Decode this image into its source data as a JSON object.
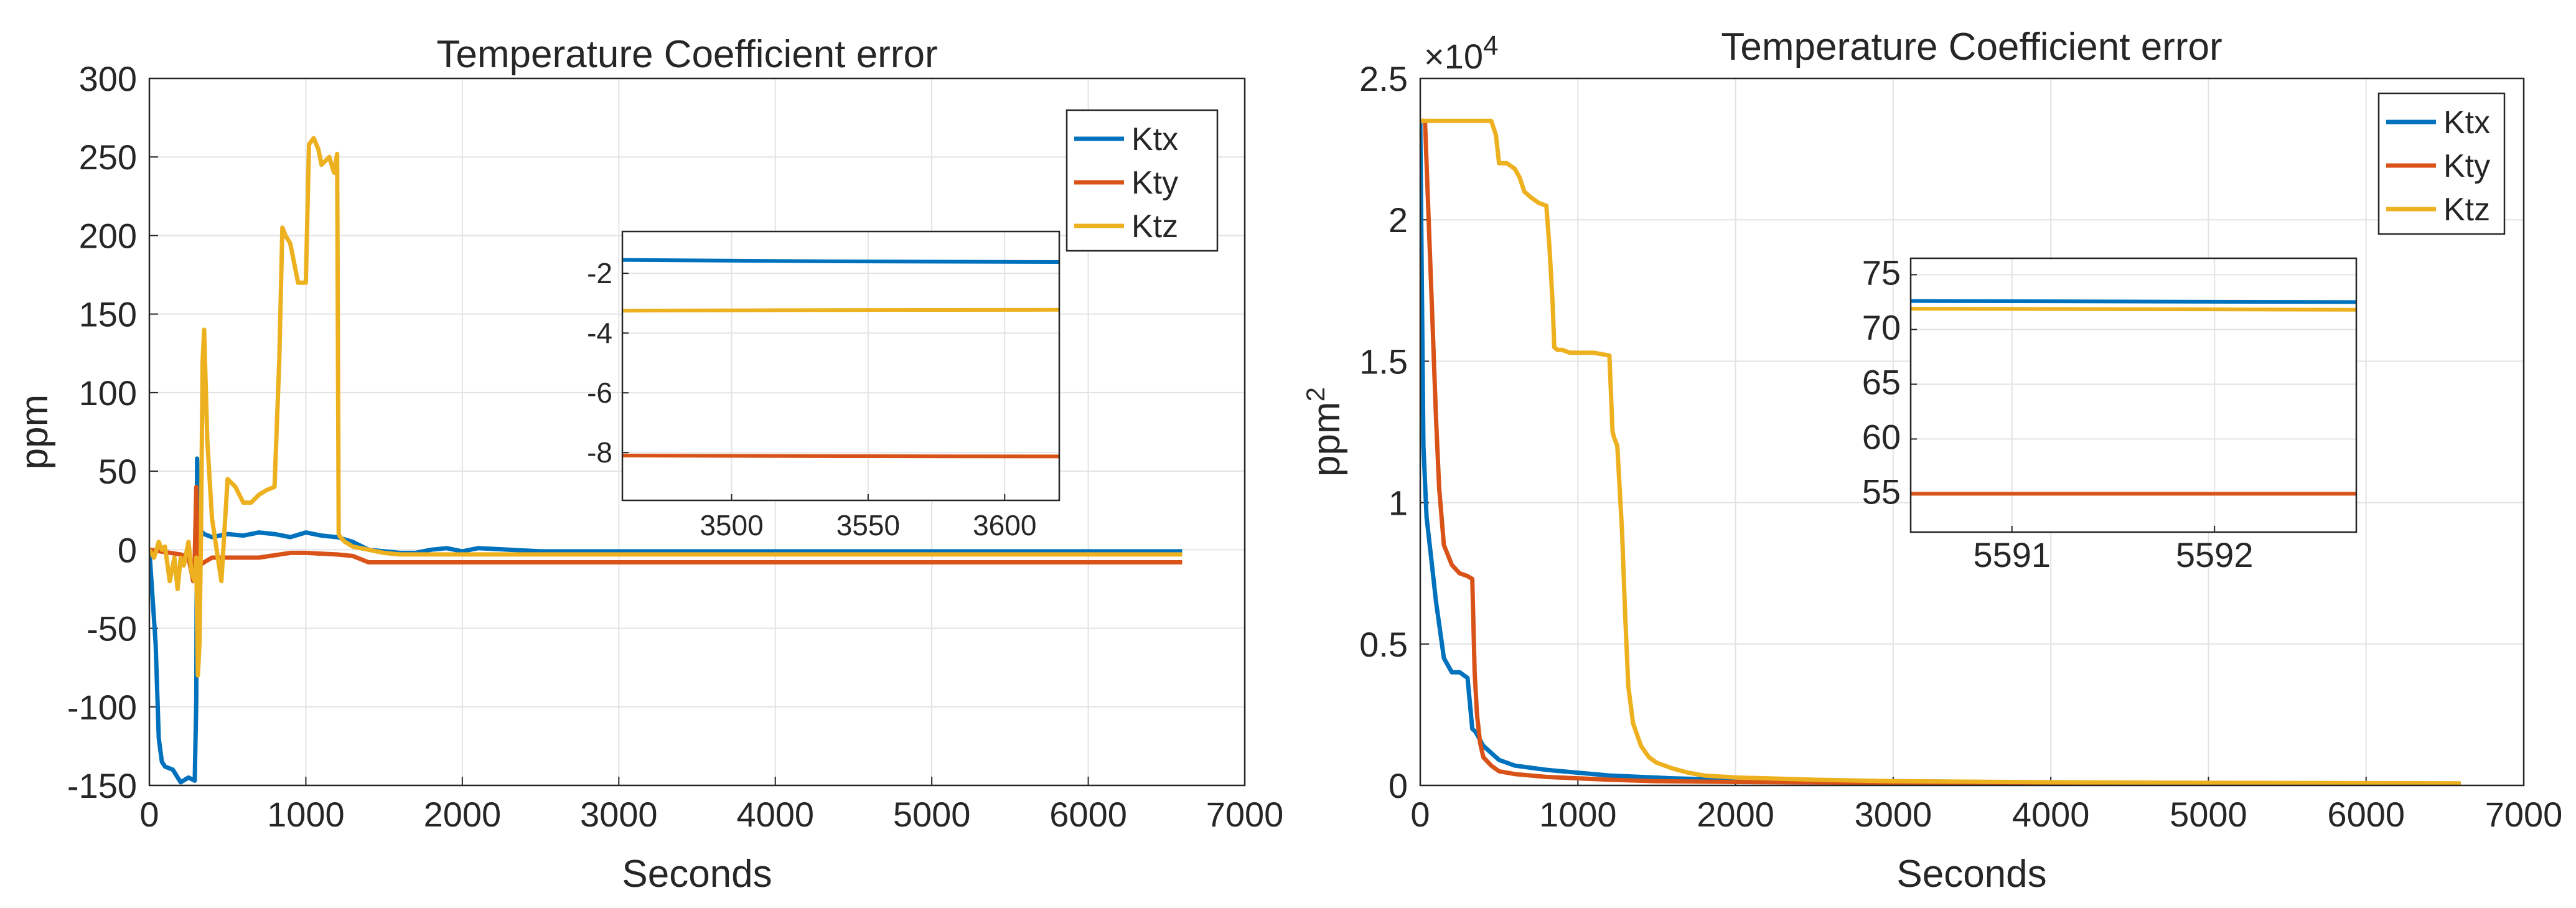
{
  "chart_data": [
    {
      "type": "line",
      "title": "Temperature Coefficient error",
      "xlabel": "Seconds",
      "ylabel": "ppm",
      "xlim": [
        0,
        7000
      ],
      "ylim": [
        -150,
        300
      ],
      "xticks": [
        "0",
        "1000",
        "2000",
        "3000",
        "4000",
        "5000",
        "6000",
        "7000"
      ],
      "yticks": [
        "-150",
        "-100",
        "-50",
        "0",
        "50",
        "100",
        "150",
        "200",
        "250",
        "300"
      ],
      "grid": true,
      "legend_position": "top-right",
      "series": [
        {
          "name": "Ktx",
          "color": "#0072BD",
          "x": [
            0,
            40,
            60,
            80,
            100,
            150,
            200,
            250,
            290,
            300,
            305,
            310,
            330,
            350,
            400,
            500,
            600,
            700,
            800,
            900,
            1000,
            1100,
            1200,
            1300,
            1400,
            1500,
            1600,
            1700,
            1800,
            1900,
            2000,
            2100,
            2500,
            3000,
            4000,
            5000,
            6000,
            6600
          ],
          "y": [
            0,
            -60,
            -120,
            -135,
            -138,
            -140,
            -148,
            -145,
            -147,
            -95,
            58,
            15,
            12,
            10,
            8,
            10,
            9,
            11,
            10,
            8,
            11,
            9,
            8,
            5,
            0,
            -1,
            -2,
            -2,
            0,
            1,
            -1,
            1,
            -1,
            -1,
            -1,
            -1,
            -1,
            -1
          ]
        },
        {
          "name": "Kty",
          "color": "#D95319",
          "x": [
            0,
            200,
            250,
            270,
            280,
            290,
            300,
            305,
            310,
            320,
            350,
            400,
            500,
            700,
            900,
            1000,
            1200,
            1300,
            1400,
            2000,
            3000,
            4000,
            5000,
            6000,
            6600
          ],
          "y": [
            0,
            -3,
            -5,
            -15,
            -20,
            -5,
            40,
            10,
            -5,
            -10,
            -8,
            -5,
            -5,
            -5,
            -2,
            -2,
            -3,
            -4,
            -8,
            -8,
            -8,
            -8,
            -8,
            -8,
            -8
          ]
        },
        {
          "name": "Ktz",
          "color": "#EDB120",
          "x": [
            0,
            30,
            60,
            80,
            100,
            130,
            160,
            180,
            200,
            220,
            250,
            270,
            290,
            300,
            310,
            320,
            330,
            340,
            350,
            370,
            400,
            430,
            460,
            500,
            550,
            600,
            650,
            700,
            750,
            800,
            830,
            850,
            870,
            900,
            950,
            1000,
            1020,
            1050,
            1080,
            1100,
            1150,
            1180,
            1200,
            1210,
            1220,
            1250,
            1300,
            1400,
            1500,
            1600,
            2000,
            3000,
            4000,
            5000,
            6000,
            6600
          ],
          "y": [
            0,
            -5,
            5,
            0,
            2,
            -20,
            -5,
            -25,
            -5,
            -10,
            5,
            -15,
            -20,
            -5,
            -80,
            -60,
            10,
            120,
            140,
            70,
            20,
            0,
            -20,
            45,
            40,
            30,
            30,
            35,
            38,
            40,
            120,
            205,
            200,
            195,
            170,
            170,
            258,
            262,
            255,
            245,
            250,
            240,
            252,
            10,
            8,
            5,
            2,
            0,
            -2,
            -3,
            -3,
            -3,
            -3,
            -3,
            -3,
            -3
          ]
        }
      ],
      "inset": {
        "xlim": [
          3460,
          3620
        ],
        "ylim": [
          -9.6,
          -0.6
        ],
        "xticks": [
          "3500",
          "3550",
          "3600"
        ],
        "yticks": [
          "-2",
          "-4",
          "-6",
          "-8"
        ],
        "series": [
          {
            "name": "Ktx",
            "x": [
              3460,
              3540,
              3620
            ],
            "y": [
              -1.55,
              -1.6,
              -1.62
            ]
          },
          {
            "name": "Kty",
            "x": [
              3460,
              3540,
              3620
            ],
            "y": [
              -8.1,
              -8.12,
              -8.13
            ]
          },
          {
            "name": "Ktz",
            "x": [
              3460,
              3540,
              3620
            ],
            "y": [
              -3.25,
              -3.23,
              -3.22
            ]
          }
        ]
      }
    },
    {
      "type": "line",
      "title": "Temperature Coefficient error",
      "xlabel": "Seconds",
      "ylabel": "ppm",
      "ylabel_superscript": "2",
      "y_exponent_base": "×10",
      "y_exponent_power": "4",
      "xlim": [
        0,
        7000
      ],
      "ylim": [
        0,
        25000
      ],
      "xticks": [
        "0",
        "1000",
        "2000",
        "3000",
        "4000",
        "5000",
        "6000",
        "7000"
      ],
      "yticks": [
        "0",
        "0.5",
        "1",
        "1.5",
        "2",
        "2.5"
      ],
      "grid": true,
      "legend_position": "top-right",
      "series": [
        {
          "name": "Ktx",
          "color": "#0072BD",
          "x": [
            0,
            20,
            40,
            60,
            80,
            100,
            150,
            200,
            250,
            300,
            330,
            350,
            400,
            500,
            600,
            800,
            1000,
            1200,
            1400,
            1600,
            1800,
            2000,
            2300,
            3000,
            4000,
            5000,
            6000,
            6600
          ],
          "y": [
            23500,
            12000,
            9500,
            8500,
            7500,
            6500,
            4500,
            4000,
            4000,
            3800,
            2000,
            1900,
            1400,
            900,
            700,
            550,
            450,
            350,
            300,
            250,
            220,
            200,
            180,
            150,
            100,
            80,
            60,
            50
          ]
        },
        {
          "name": "Kty",
          "color": "#D95319",
          "x": [
            0,
            30,
            60,
            80,
            100,
            120,
            150,
            200,
            250,
            300,
            330,
            345,
            360,
            380,
            400,
            450,
            500,
            600,
            800,
            1000,
            1200,
            1500,
            2000,
            3000,
            4000,
            5000,
            6000,
            6600
          ],
          "y": [
            23500,
            23500,
            19000,
            16000,
            13000,
            10500,
            8500,
            7800,
            7500,
            7400,
            7300,
            4000,
            2500,
            1500,
            1000,
            700,
            500,
            400,
            300,
            250,
            200,
            150,
            120,
            90,
            70,
            60,
            55,
            55
          ]
        },
        {
          "name": "Ktz",
          "color": "#EDB120",
          "x": [
            0,
            300,
            450,
            480,
            500,
            550,
            600,
            630,
            660,
            680,
            700,
            750,
            800,
            820,
            840,
            850,
            870,
            900,
            950,
            1000,
            1100,
            1200,
            1220,
            1230,
            1250,
            1280,
            1300,
            1320,
            1350,
            1400,
            1450,
            1500,
            1600,
            1700,
            1800,
            2000,
            2200,
            2500,
            3000,
            4000,
            5000,
            6000,
            6600
          ],
          "y": [
            23500,
            23500,
            23500,
            23000,
            22000,
            22000,
            21800,
            21500,
            21000,
            20900,
            20800,
            20600,
            20500,
            19000,
            17000,
            15500,
            15400,
            15400,
            15300,
            15300,
            15300,
            15200,
            12500,
            12300,
            12000,
            9000,
            6000,
            3500,
            2200,
            1400,
            1000,
            800,
            600,
            450,
            350,
            280,
            250,
            200,
            150,
            110,
            90,
            80,
            72
          ]
        }
      ],
      "inset": {
        "xlim": [
          5590.5,
          5592.7
        ],
        "ylim": [
          51.5,
          76.5
        ],
        "xticks": [
          "5591",
          "5592"
        ],
        "yticks": [
          "75",
          "70",
          "65",
          "60",
          "55"
        ],
        "series": [
          {
            "name": "Ktx",
            "x": [
              5590.5,
              5592.7
            ],
            "y": [
              72.6,
              72.5
            ]
          },
          {
            "name": "Kty",
            "x": [
              5590.5,
              5592.7
            ],
            "y": [
              55,
              55
            ]
          },
          {
            "name": "Ktz",
            "x": [
              5590.5,
              5592.7
            ],
            "y": [
              71.9,
              71.8
            ]
          }
        ]
      }
    }
  ]
}
